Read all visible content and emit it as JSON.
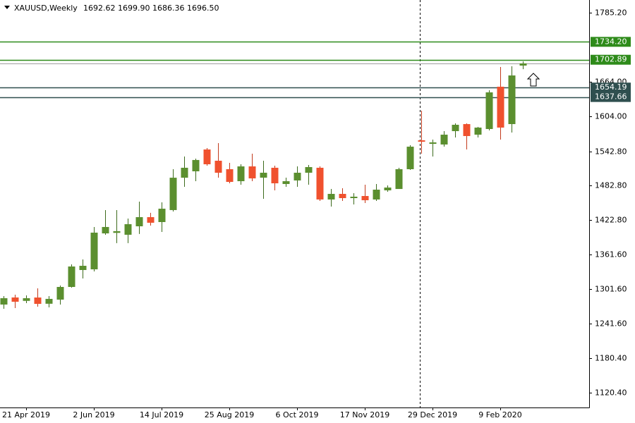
{
  "chart_data": {
    "type": "candlestick",
    "header": {
      "symbol": "XAUUSD,Weekly",
      "open": "1692.62",
      "high": "1699.90",
      "low": "1686.36",
      "close": "1696.50"
    },
    "categories": [
      null,
      null,
      "21 Apr 2019",
      null,
      null,
      null,
      null,
      null,
      "2 Jun 2019",
      null,
      null,
      null,
      null,
      null,
      "14 Jul 2019",
      null,
      null,
      null,
      null,
      null,
      "25 Aug 2019",
      null,
      null,
      null,
      null,
      null,
      "6 Oct 2019",
      null,
      null,
      null,
      null,
      null,
      "17 Nov 2019",
      null,
      null,
      null,
      null,
      null,
      "29 Dec 2019",
      null,
      null,
      null,
      null,
      null,
      "9 Feb 2020",
      null,
      null
    ],
    "open": [
      1274.6,
      1287.0,
      1281.0,
      1286.9,
      1276.0,
      1283.2,
      1305.4,
      1335.0,
      1336.2,
      1399.1,
      1400.0,
      1396.7,
      1411.5,
      1427.5,
      1418.9,
      1439.9,
      1496.5,
      1507.7,
      1545.9,
      1526.2,
      1511.4,
      1490.4,
      1516.3,
      1496.6,
      1513.9,
      1485.5,
      1491.7,
      1505.2,
      1513.9,
      1458.4,
      1468.2,
      1460.8,
      1464.5,
      1458.4,
      1474.4,
      1476.8,
      1511.4,
      1561.9,
      1555.8,
      1554.6,
      1578.0,
      1590.3,
      1571.8,
      1581.7,
      1655.7,
      1590.3,
      1692.62
    ],
    "high": [
      1289.4,
      1291.9,
      1290.6,
      1303.0,
      1289.4,
      1307.9,
      1344.9,
      1353.5,
      1410.3,
      1439.9,
      1439.9,
      1425.1,
      1454.6,
      1435.0,
      1453.4,
      1511.4,
      1533.6,
      1529.9,
      1548.4,
      1557.0,
      1522.5,
      1520.0,
      1538.5,
      1526.2,
      1517.6,
      1496.6,
      1516.3,
      1518.8,
      1516.3,
      1476.8,
      1478.1,
      1469.5,
      1484.3,
      1485.5,
      1483.0,
      1513.9,
      1553.3,
      1613.7,
      1563.2,
      1578.0,
      1591.6,
      1591.6,
      1585.4,
      1649.5,
      1690.2,
      1691.5,
      1699.9
    ],
    "low": [
      1267.2,
      1268.4,
      1277.0,
      1270.9,
      1269.6,
      1274.6,
      1304.2,
      1320.2,
      1332.5,
      1396.7,
      1382.0,
      1382.0,
      1398.0,
      1412.7,
      1401.6,
      1437.4,
      1480.5,
      1490.4,
      1517.6,
      1496.6,
      1486.7,
      1484.3,
      1490.4,
      1459.6,
      1474.4,
      1480.5,
      1480.5,
      1484.3,
      1455.9,
      1446.0,
      1455.9,
      1449.7,
      1452.2,
      1455.9,
      1471.9,
      1476.8,
      1510.1,
      1538.5,
      1533.6,
      1550.8,
      1566.9,
      1545.9,
      1566.9,
      1579.2,
      1563.2,
      1575.5,
      1686.36
    ],
    "close": [
      1285.7,
      1279.5,
      1285.7,
      1275.8,
      1284.5,
      1305.4,
      1341.2,
      1342.4,
      1400.4,
      1410.3,
      1403.0,
      1415.2,
      1427.5,
      1417.7,
      1442.3,
      1496.5,
      1513.9,
      1527.5,
      1520.0,
      1505.2,
      1489.2,
      1516.3,
      1495.3,
      1505.2,
      1486.7,
      1490.4,
      1505.2,
      1515.1,
      1458.4,
      1468.2,
      1460.8,
      1463.3,
      1457.1,
      1475.6,
      1479.3,
      1511.4,
      1550.8,
      1559.5,
      1558.3,
      1571.8,
      1589.1,
      1569.4,
      1584.2,
      1645.8,
      1584.2,
      1675.4,
      1696.5
    ],
    "up_color": "#5b8f2f",
    "down_color": "#f0512e",
    "ylim": [
      1120.4,
      1785.2
    ],
    "yticks": [
      {
        "value": 1785.2,
        "label": "1785.20"
      },
      {
        "value": 1664,
        "label": "1664.00"
      },
      {
        "value": 1604,
        "label": "1604.00"
      },
      {
        "value": 1542.8,
        "label": "1542.80"
      },
      {
        "value": 1482.8,
        "label": "1482.80"
      },
      {
        "value": 1422.8,
        "label": "1422.80"
      },
      {
        "value": 1361.6,
        "label": "1361.60"
      },
      {
        "value": 1301.6,
        "label": "1301.60"
      },
      {
        "value": 1241.6,
        "label": "1241.60"
      },
      {
        "value": 1180.4,
        "label": "1180.40"
      },
      {
        "value": 1120.4,
        "label": "1120.40"
      }
    ],
    "levels": [
      {
        "value": 1734.2,
        "label": "1734.20",
        "color": "#2e8b1a"
      },
      {
        "value": 1702.89,
        "label": "1702.89",
        "color": "#2e8b1a"
      },
      {
        "value": 1654.19,
        "label": "1654.19",
        "color": "#2f4f4f"
      },
      {
        "value": 1637.66,
        "label": "1637.66",
        "color": "#2f4f4f"
      }
    ]
  }
}
